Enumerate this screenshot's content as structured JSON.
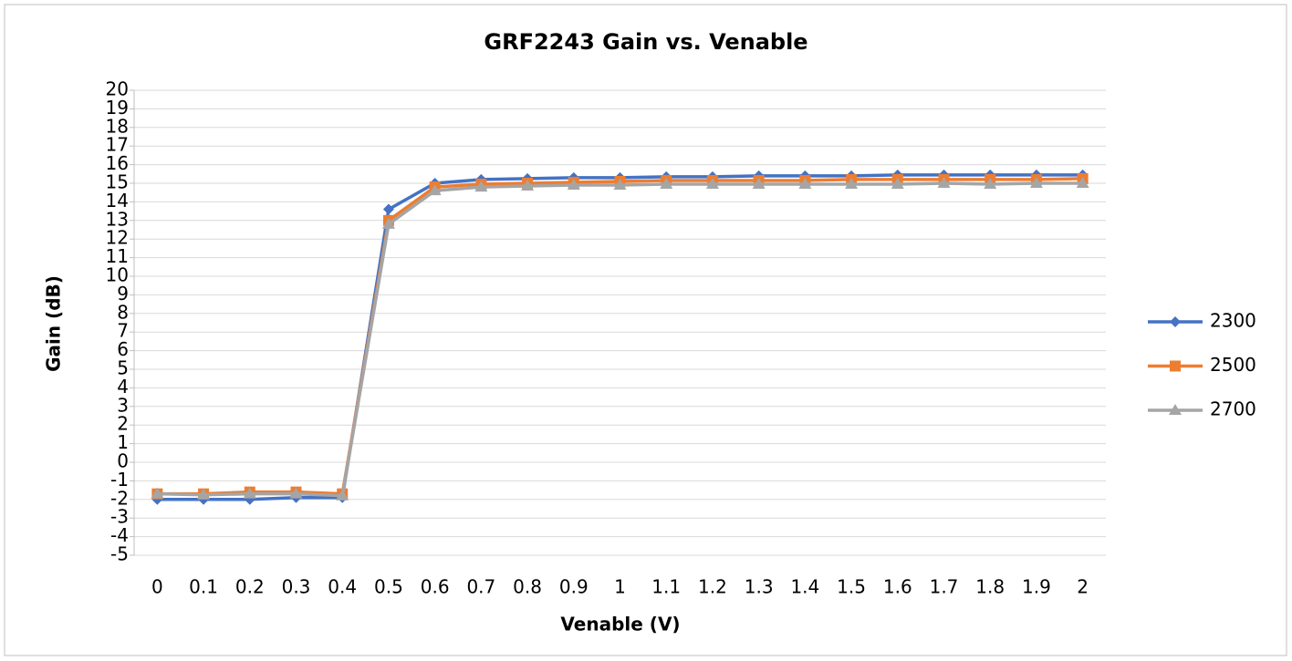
{
  "chart_data": {
    "type": "line",
    "title": "GRF2243 Gain vs. Venable",
    "xlabel": "Venable (V)",
    "ylabel": "Gain (dB)",
    "categories": [
      "0",
      "0.1",
      "0.2",
      "0.3",
      "0.4",
      "0.5",
      "0.6",
      "0.7",
      "0.8",
      "0.9",
      "1",
      "1.1",
      "1.2",
      "1.3",
      "1.4",
      "1.5",
      "1.6",
      "1.7",
      "1.8",
      "1.9",
      "2"
    ],
    "series": [
      {
        "name": "2300",
        "color": "#4472c4",
        "marker": "diamond",
        "values": [
          -2,
          -2,
          -2,
          -1.9,
          -1.9,
          13.6,
          15.0,
          15.2,
          15.25,
          15.3,
          15.3,
          15.35,
          15.35,
          15.4,
          15.4,
          15.4,
          15.45,
          15.45,
          15.45,
          15.45,
          15.45
        ]
      },
      {
        "name": "2500",
        "color": "#ed7d31",
        "marker": "square",
        "values": [
          -1.7,
          -1.7,
          -1.6,
          -1.6,
          -1.7,
          13.0,
          14.8,
          14.95,
          15.0,
          15.05,
          15.1,
          15.15,
          15.15,
          15.15,
          15.15,
          15.2,
          15.2,
          15.2,
          15.2,
          15.2,
          15.25
        ]
      },
      {
        "name": "2700",
        "color": "#a5a5a5",
        "marker": "triangle",
        "values": [
          -1.7,
          -1.75,
          -1.7,
          -1.7,
          -1.8,
          12.8,
          14.6,
          14.8,
          14.85,
          14.9,
          14.9,
          14.95,
          14.95,
          14.95,
          14.95,
          14.95,
          14.95,
          15.0,
          14.95,
          15.0,
          15.0
        ]
      }
    ],
    "ylim": [
      -5,
      20
    ],
    "yticks": [
      -5,
      -4,
      -3,
      -2,
      -1,
      0,
      1,
      2,
      3,
      4,
      5,
      6,
      7,
      8,
      9,
      10,
      11,
      12,
      13,
      14,
      15,
      16,
      17,
      18,
      19,
      20
    ],
    "grid": true,
    "legend": "right"
  }
}
